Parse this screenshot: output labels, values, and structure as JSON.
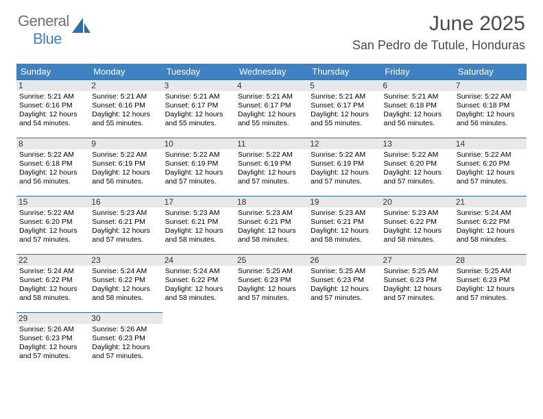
{
  "logo": {
    "text1": "General",
    "text2": "Blue"
  },
  "title": "June 2025",
  "location": "San Pedro de Tutule, Honduras",
  "columns": [
    "Sunday",
    "Monday",
    "Tuesday",
    "Wednesday",
    "Thursday",
    "Friday",
    "Saturday"
  ],
  "header_bg": "#3e82c4",
  "header_fg": "#ffffff",
  "daynum_bg": "#e8e8e8",
  "cell_border": "#336699",
  "weeks": [
    [
      {
        "n": 1,
        "sr": "5:21 AM",
        "ss": "6:16 PM",
        "dh": 12,
        "dm": 54
      },
      {
        "n": 2,
        "sr": "5:21 AM",
        "ss": "6:16 PM",
        "dh": 12,
        "dm": 55
      },
      {
        "n": 3,
        "sr": "5:21 AM",
        "ss": "6:17 PM",
        "dh": 12,
        "dm": 55
      },
      {
        "n": 4,
        "sr": "5:21 AM",
        "ss": "6:17 PM",
        "dh": 12,
        "dm": 55
      },
      {
        "n": 5,
        "sr": "5:21 AM",
        "ss": "6:17 PM",
        "dh": 12,
        "dm": 55
      },
      {
        "n": 6,
        "sr": "5:21 AM",
        "ss": "6:18 PM",
        "dh": 12,
        "dm": 56
      },
      {
        "n": 7,
        "sr": "5:22 AM",
        "ss": "6:18 PM",
        "dh": 12,
        "dm": 56
      }
    ],
    [
      {
        "n": 8,
        "sr": "5:22 AM",
        "ss": "6:18 PM",
        "dh": 12,
        "dm": 56
      },
      {
        "n": 9,
        "sr": "5:22 AM",
        "ss": "6:19 PM",
        "dh": 12,
        "dm": 56
      },
      {
        "n": 10,
        "sr": "5:22 AM",
        "ss": "6:19 PM",
        "dh": 12,
        "dm": 57
      },
      {
        "n": 11,
        "sr": "5:22 AM",
        "ss": "6:19 PM",
        "dh": 12,
        "dm": 57
      },
      {
        "n": 12,
        "sr": "5:22 AM",
        "ss": "6:19 PM",
        "dh": 12,
        "dm": 57
      },
      {
        "n": 13,
        "sr": "5:22 AM",
        "ss": "6:20 PM",
        "dh": 12,
        "dm": 57
      },
      {
        "n": 14,
        "sr": "5:22 AM",
        "ss": "6:20 PM",
        "dh": 12,
        "dm": 57
      }
    ],
    [
      {
        "n": 15,
        "sr": "5:22 AM",
        "ss": "6:20 PM",
        "dh": 12,
        "dm": 57
      },
      {
        "n": 16,
        "sr": "5:23 AM",
        "ss": "6:21 PM",
        "dh": 12,
        "dm": 57
      },
      {
        "n": 17,
        "sr": "5:23 AM",
        "ss": "6:21 PM",
        "dh": 12,
        "dm": 58
      },
      {
        "n": 18,
        "sr": "5:23 AM",
        "ss": "6:21 PM",
        "dh": 12,
        "dm": 58
      },
      {
        "n": 19,
        "sr": "5:23 AM",
        "ss": "6:21 PM",
        "dh": 12,
        "dm": 58
      },
      {
        "n": 20,
        "sr": "5:23 AM",
        "ss": "6:22 PM",
        "dh": 12,
        "dm": 58
      },
      {
        "n": 21,
        "sr": "5:24 AM",
        "ss": "6:22 PM",
        "dh": 12,
        "dm": 58
      }
    ],
    [
      {
        "n": 22,
        "sr": "5:24 AM",
        "ss": "6:22 PM",
        "dh": 12,
        "dm": 58
      },
      {
        "n": 23,
        "sr": "5:24 AM",
        "ss": "6:22 PM",
        "dh": 12,
        "dm": 58
      },
      {
        "n": 24,
        "sr": "5:24 AM",
        "ss": "6:22 PM",
        "dh": 12,
        "dm": 58
      },
      {
        "n": 25,
        "sr": "5:25 AM",
        "ss": "6:23 PM",
        "dh": 12,
        "dm": 57
      },
      {
        "n": 26,
        "sr": "5:25 AM",
        "ss": "6:23 PM",
        "dh": 12,
        "dm": 57
      },
      {
        "n": 27,
        "sr": "5:25 AM",
        "ss": "6:23 PM",
        "dh": 12,
        "dm": 57
      },
      {
        "n": 28,
        "sr": "5:25 AM",
        "ss": "6:23 PM",
        "dh": 12,
        "dm": 57
      }
    ],
    [
      {
        "n": 29,
        "sr": "5:26 AM",
        "ss": "6:23 PM",
        "dh": 12,
        "dm": 57
      },
      {
        "n": 30,
        "sr": "5:26 AM",
        "ss": "6:23 PM",
        "dh": 12,
        "dm": 57
      },
      null,
      null,
      null,
      null,
      null
    ]
  ]
}
